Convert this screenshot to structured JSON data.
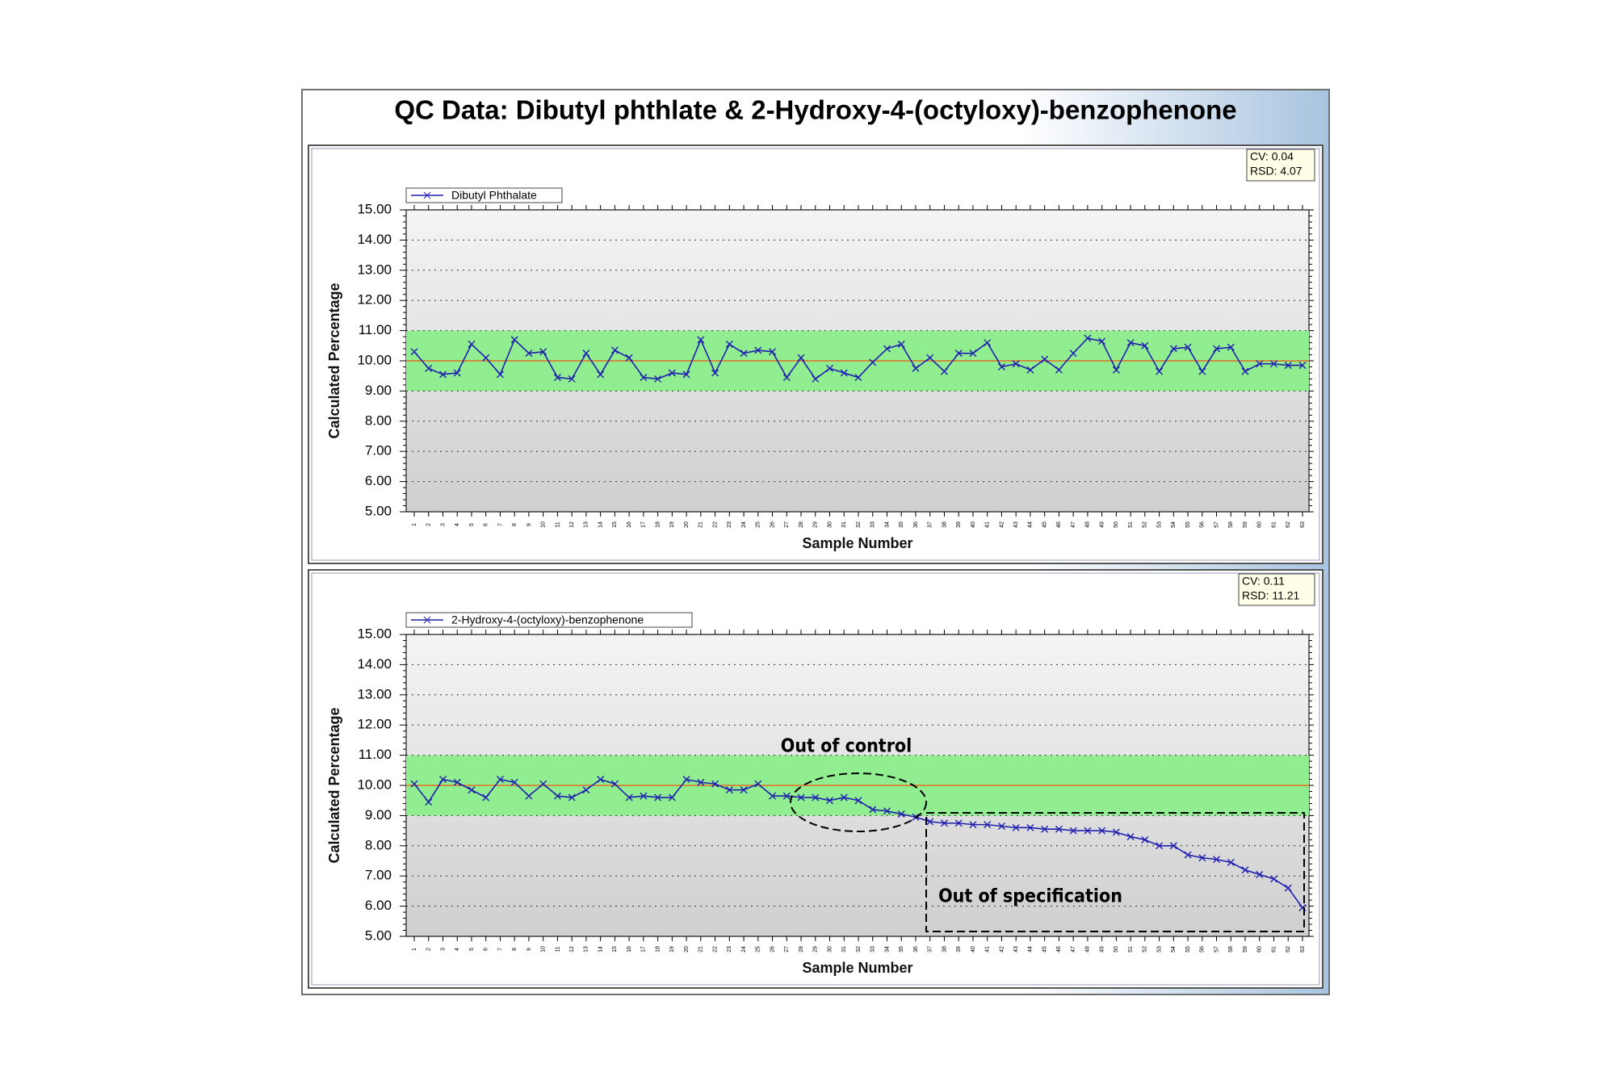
{
  "title": "QC Data: Dibutyl phthlate & 2-Hydroxy-4-(octyloxy)-benzophenone",
  "chart_data": [
    {
      "type": "line",
      "stats": [
        "CV: 0.04",
        "RSD: 4.07"
      ],
      "ylabel": "Calculated Percentage",
      "xlabel": "Sample Number",
      "categories": [
        "1",
        "2",
        "3",
        "4",
        "5",
        "6",
        "7",
        "8",
        "9",
        "10",
        "11",
        "12",
        "13",
        "14",
        "15",
        "16",
        "17",
        "18",
        "19",
        "20",
        "21",
        "22",
        "23",
        "24",
        "25",
        "26",
        "27",
        "28",
        "29",
        "30",
        "31",
        "32",
        "33",
        "34",
        "35",
        "36",
        "37",
        "38",
        "39",
        "40",
        "41",
        "42",
        "43",
        "44",
        "45",
        "46",
        "47",
        "48",
        "49",
        "50",
        "51",
        "52",
        "53",
        "54",
        "55",
        "56",
        "57",
        "58",
        "59",
        "60",
        "61",
        "62",
        "63"
      ],
      "series": [
        {
          "name": "Dibutyl Phthalate",
          "color": "#2020b0",
          "values": [
            10.3,
            9.75,
            9.55,
            9.6,
            10.55,
            10.1,
            9.55,
            10.7,
            10.25,
            10.3,
            9.45,
            9.4,
            10.25,
            9.55,
            10.35,
            10.1,
            9.45,
            9.4,
            9.6,
            9.55,
            10.7,
            9.6,
            10.55,
            10.25,
            10.35,
            10.3,
            9.45,
            10.1,
            9.4,
            9.75,
            9.6,
            9.45,
            9.95,
            10.4,
            10.55,
            9.75,
            10.1,
            9.65,
            10.25,
            10.25,
            10.6,
            9.8,
            9.9,
            9.7,
            10.05,
            9.7,
            10.25,
            10.75,
            10.65,
            9.7,
            10.6,
            10.5,
            9.65,
            10.4,
            10.45,
            9.65,
            10.4,
            10.45,
            9.65,
            9.9,
            9.9,
            9.85,
            9.85
          ]
        }
      ],
      "control_band": [
        9,
        11
      ],
      "band_color": "#90ee90",
      "center_line": 10,
      "center_color": "#e07020",
      "ylim": [
        5,
        15
      ],
      "yticks": [
        {
          "value": 5,
          "label": "5.00"
        },
        {
          "value": 6,
          "label": "6.00"
        },
        {
          "value": 7,
          "label": "7.00"
        },
        {
          "value": 8,
          "label": "8.00"
        },
        {
          "value": 9,
          "label": "9.00"
        },
        {
          "value": 10,
          "label": "10.00"
        },
        {
          "value": 11,
          "label": "11.00"
        },
        {
          "value": 12,
          "label": "12.00"
        },
        {
          "value": 13,
          "label": "13.00"
        },
        {
          "value": 14,
          "label": "14.00"
        },
        {
          "value": 15,
          "label": "15.00"
        }
      ],
      "grid": true,
      "legend": "top-left"
    },
    {
      "type": "line",
      "stats": [
        "CV: 0.11",
        "RSD: 11.21"
      ],
      "ylabel": "Calculated Percentage",
      "xlabel": "Sample Number",
      "annotations": [
        "Out of control",
        "Out of specification"
      ],
      "categories": [
        "1",
        "2",
        "3",
        "4",
        "5",
        "6",
        "7",
        "8",
        "9",
        "10",
        "11",
        "12",
        "13",
        "14",
        "15",
        "16",
        "17",
        "18",
        "19",
        "20",
        "21",
        "22",
        "23",
        "24",
        "25",
        "26",
        "27",
        "28",
        "29",
        "30",
        "31",
        "32",
        "33",
        "34",
        "35",
        "36",
        "37",
        "38",
        "39",
        "40",
        "41",
        "42",
        "43",
        "44",
        "45",
        "46",
        "47",
        "48",
        "49",
        "50",
        "51",
        "52",
        "53",
        "54",
        "55",
        "56",
        "57",
        "58",
        "59",
        "60",
        "61",
        "62",
        "63"
      ],
      "series": [
        {
          "name": "2-Hydroxy-4-(octyloxy)-benzophenone",
          "color": "#2020b0",
          "values": [
            10.05,
            9.45,
            10.2,
            10.1,
            9.85,
            9.6,
            10.2,
            10.1,
            9.65,
            10.05,
            9.65,
            9.6,
            9.85,
            10.2,
            10.05,
            9.6,
            9.65,
            9.6,
            9.6,
            10.2,
            10.1,
            10.05,
            9.85,
            9.85,
            10.05,
            9.65,
            9.65,
            9.6,
            9.6,
            9.5,
            9.6,
            9.5,
            9.2,
            9.15,
            9.05,
            8.95,
            8.8,
            8.75,
            8.75,
            8.7,
            8.7,
            8.65,
            8.6,
            8.6,
            8.55,
            8.55,
            8.5,
            8.5,
            8.5,
            8.45,
            8.3,
            8.2,
            8.0,
            8.0,
            7.7,
            7.6,
            7.55,
            7.45,
            7.2,
            7.05,
            6.9,
            6.6,
            5.95
          ]
        }
      ],
      "control_band": [
        9,
        11
      ],
      "band_color": "#90ee90",
      "center_line": 10,
      "center_color": "#e07020",
      "ylim": [
        5,
        15
      ],
      "yticks": [
        {
          "value": 5,
          "label": "5.00"
        },
        {
          "value": 6,
          "label": "6.00"
        },
        {
          "value": 7,
          "label": "7.00"
        },
        {
          "value": 8,
          "label": "8.00"
        },
        {
          "value": 9,
          "label": "9.00"
        },
        {
          "value": 10,
          "label": "10.00"
        },
        {
          "value": 11,
          "label": "11.00"
        },
        {
          "value": 12,
          "label": "12.00"
        },
        {
          "value": 13,
          "label": "13.00"
        },
        {
          "value": 14,
          "label": "14.00"
        },
        {
          "value": 15,
          "label": "15.00"
        }
      ],
      "grid": true,
      "legend": "top-left"
    }
  ]
}
